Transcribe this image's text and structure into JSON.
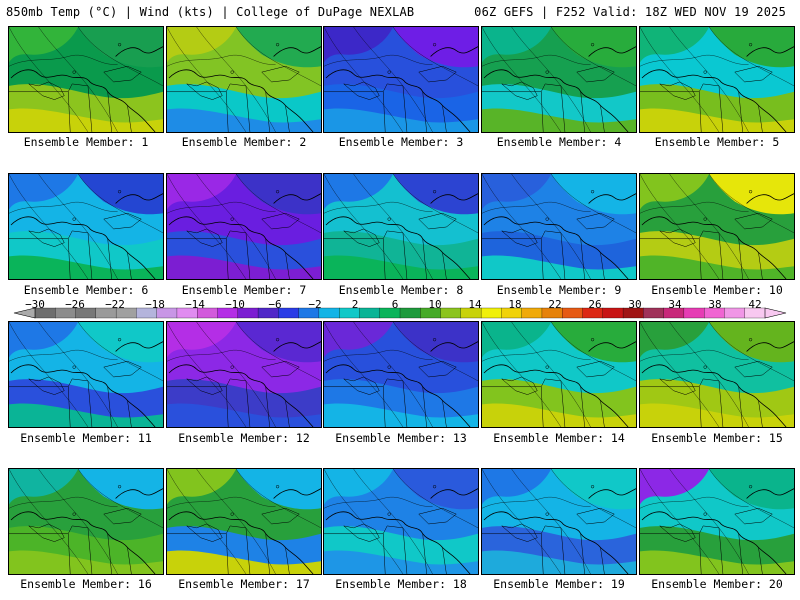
{
  "header": {
    "left": "850mb Temp (°C) | Wind (kts) | College of DuPage NEXLAB",
    "right": "06Z GEFS | F252 Valid: 18Z WED NOV 19 2025"
  },
  "panels": [
    {
      "label": "Ensemble Member: 1",
      "colors": [
        "#0a9a4c",
        "#32b43a",
        "#189e50",
        "#8cc41e",
        "#c8d20a"
      ]
    },
    {
      "label": "Ensemble Member: 2",
      "colors": [
        "#82c424",
        "#b4cc14",
        "#22aa50",
        "#0ac8c8",
        "#1e8ce6"
      ]
    },
    {
      "label": "Ensemble Member: 3",
      "colors": [
        "#2850dc",
        "#3c28c8",
        "#6e1ee6",
        "#1a64e6",
        "#1a96e6"
      ]
    },
    {
      "label": "Ensemble Member: 4",
      "colors": [
        "#16a050",
        "#0ab48c",
        "#28ac3c",
        "#12c8c8",
        "#58b428"
      ]
    },
    {
      "label": "Ensemble Member: 5",
      "colors": [
        "#0ac8d2",
        "#10b478",
        "#28aa3c",
        "#78be1e",
        "#c8d20a"
      ]
    },
    {
      "label": "Ensemble Member: 6",
      "colors": [
        "#14b4e6",
        "#1e78e6",
        "#2446d2",
        "#10c8c8",
        "#0ab45a"
      ]
    },
    {
      "label": "Ensemble Member: 7",
      "colors": [
        "#6a1ee0",
        "#9a28e6",
        "#3c32c8",
        "#2a50dc",
        "#7c1ed2"
      ]
    },
    {
      "label": "Ensemble Member: 8",
      "colors": [
        "#14c0d0",
        "#1e78e6",
        "#2c44d2",
        "#10b496",
        "#0ab45a"
      ]
    },
    {
      "label": "Ensemble Member: 9",
      "colors": [
        "#1e82e6",
        "#2860dc",
        "#14b4e6",
        "#1e64dc",
        "#10c8c8"
      ]
    },
    {
      "label": "Ensemble Member: 10",
      "colors": [
        "#28a03c",
        "#82c41e",
        "#e6e60a",
        "#b4cc14",
        "#50b428"
      ]
    },
    {
      "label": "Ensemble Member: 11",
      "colors": [
        "#14b4e6",
        "#1e78e6",
        "#10c8c8",
        "#2a50dc",
        "#0ab496"
      ]
    },
    {
      "label": "Ensemble Member: 12",
      "colors": [
        "#8c28e6",
        "#b42ee6",
        "#5a28d2",
        "#3c3cc8",
        "#2a50dc"
      ]
    },
    {
      "label": "Ensemble Member: 13",
      "colors": [
        "#2850dc",
        "#6a28d8",
        "#3c32c8",
        "#1e78e6",
        "#14b4e6"
      ]
    },
    {
      "label": "Ensemble Member: 14",
      "colors": [
        "#10c8c8",
        "#0ab48c",
        "#28ac3c",
        "#82c41e",
        "#c8d20a"
      ]
    },
    {
      "label": "Ensemble Member: 15",
      "colors": [
        "#10c0a0",
        "#28a03c",
        "#64b41e",
        "#a0c814",
        "#c8d20a"
      ]
    },
    {
      "label": "Ensemble Member: 16",
      "colors": [
        "#28a03c",
        "#10b4a0",
        "#14b4e6",
        "#4cb428",
        "#82c41e"
      ]
    },
    {
      "label": "Ensemble Member: 17",
      "colors": [
        "#28a03c",
        "#82c41e",
        "#14b4e6",
        "#1e82e6",
        "#c8d20a"
      ]
    },
    {
      "label": "Ensemble Member: 18",
      "colors": [
        "#1e82e6",
        "#14b4e6",
        "#2a5adc",
        "#10c8c8",
        "#1e96e6"
      ]
    },
    {
      "label": "Ensemble Member: 19",
      "colors": [
        "#14b4e6",
        "#1e78e6",
        "#10c8c8",
        "#2a64dc",
        "#1eaadc"
      ]
    },
    {
      "label": "Ensemble Member: 20",
      "colors": [
        "#10c8c8",
        "#8c28e6",
        "#0ab48c",
        "#28a03c",
        "#82c41e"
      ]
    }
  ],
  "colorbar": {
    "ticks": [
      "−30",
      "−26",
      "−22",
      "−18",
      "−14",
      "−10",
      "−6",
      "−2",
      "2",
      "6",
      "10",
      "14",
      "18",
      "22",
      "26",
      "30",
      "34",
      "38",
      "42"
    ],
    "colors": [
      "#6e6e6e",
      "#8c8c8c",
      "#787878",
      "#9a9a9a",
      "#a0a0a0",
      "#b4b4dc",
      "#c896e6",
      "#e08cf0",
      "#d25adc",
      "#b42ee6",
      "#7c1ed2",
      "#5028c8",
      "#2a3ce6",
      "#1e78e6",
      "#14b4e6",
      "#10c8c8",
      "#0ab496",
      "#0ab45a",
      "#1e9a3c",
      "#46aa28",
      "#8cc41e",
      "#c8d20a",
      "#f0f00a",
      "#f0d20a",
      "#f0aa0a",
      "#e6820a",
      "#e65a14",
      "#dc2814",
      "#c81414",
      "#a01414",
      "#a0325a",
      "#c8287a",
      "#e63cb4",
      "#f064d2",
      "#f096e6",
      "#f8c8f0"
    ]
  }
}
